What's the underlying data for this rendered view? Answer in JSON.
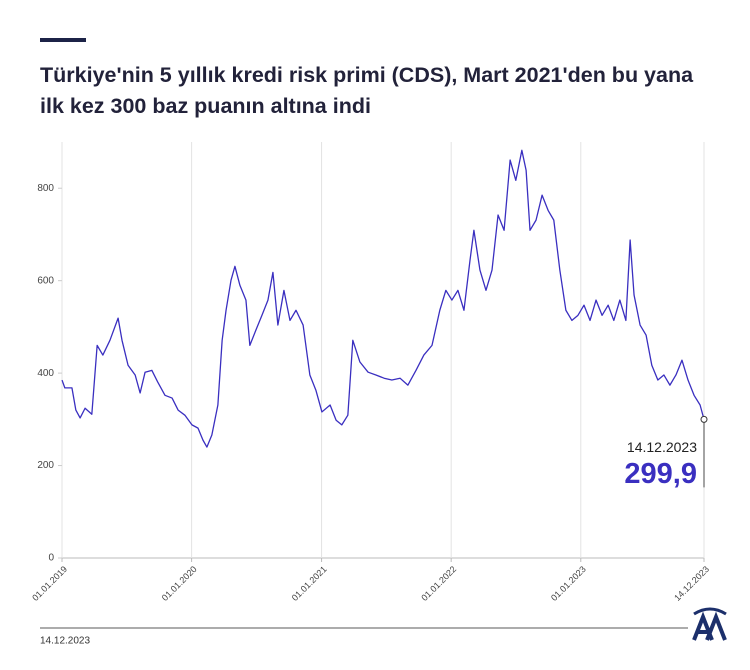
{
  "chart_data": {
    "type": "line",
    "title": "Türkiye'nin 5 yıllık kredi risk primi (CDS), Mart 2021'den bu yana ilk kez 300 baz puanın altına indi",
    "x": [
      "01.01.2019",
      "09.01.2019",
      "29.01.2019",
      "09.02.2019",
      "21.02.2019",
      "07.03.2019",
      "26.03.2019",
      "10.04.2019",
      "26.04.2019",
      "16.05.2019",
      "08.06.2019",
      "19.06.2019",
      "06.07.2019",
      "26.07.2019",
      "09.08.2019",
      "23.08.2019",
      "11.09.2019",
      "28.09.2019",
      "18.10.2019",
      "07.11.2019",
      "24.11.2019",
      "13.12.2019",
      "02.01.2020",
      "19.01.2020",
      "02.02.2020",
      "13.02.2020",
      "27.02.2020",
      "15.03.2020",
      "27.03.2020",
      "07.04.2020",
      "21.04.2020",
      "02.05.2020",
      "16.05.2020",
      "02.06.2020",
      "13.06.2020",
      "30.06.2020",
      "17.07.2020",
      "03.08.2020",
      "17.08.2020",
      "31.08.2020",
      "17.09.2020",
      "04.10.2020",
      "21.10.2020",
      "10.11.2020",
      "29.11.2020",
      "16.12.2020",
      "02.01.2021",
      "25.01.2021",
      "11.02.2021",
      "27.02.2021",
      "16.03.2021",
      "30.03.2021",
      "19.04.2021",
      "12.05.2021",
      "03.06.2021",
      "26.06.2021",
      "18.07.2021",
      "10.08.2021",
      "01.09.2021",
      "24.09.2021",
      "16.10.2021",
      "08.11.2021",
      "30.11.2021",
      "17.12.2021",
      "03.01.2022",
      "20.01.2022",
      "06.02.2022",
      "23.02.2022",
      "06.03.2022",
      "23.03.2022",
      "09.04.2022",
      "26.04.2022",
      "13.05.2022",
      "30.05.2022",
      "16.06.2022",
      "02.07.2022",
      "19.07.2022",
      "31.07.2022",
      "11.08.2022",
      "28.08.2022",
      "14.09.2022",
      "01.10.2022",
      "17.10.2022",
      "03.11.2022",
      "20.11.2022",
      "07.12.2022",
      "24.12.2022",
      "10.01.2023",
      "27.01.2023",
      "13.02.2023",
      "02.03.2023",
      "19.03.2023",
      "04.04.2023",
      "21.04.2023",
      "08.05.2023",
      "20.05.2023",
      "31.05.2023",
      "17.06.2023",
      "04.07.2023",
      "20.07.2023",
      "06.08.2023",
      "23.08.2023",
      "09.09.2023",
      "26.09.2023",
      "13.10.2023",
      "30.10.2023",
      "16.11.2023",
      "03.12.2023",
      "14.12.2023"
    ],
    "values": [
      385,
      368,
      368,
      320,
      303,
      324,
      311,
      460,
      439,
      471,
      519,
      471,
      417,
      396,
      357,
      402,
      406,
      380,
      352,
      346,
      320,
      309,
      288,
      281,
      255,
      240,
      266,
      331,
      471,
      536,
      601,
      631,
      590,
      558,
      460,
      493,
      525,
      558,
      618,
      504,
      579,
      514,
      536,
      504,
      396,
      363,
      316,
      331,
      298,
      288,
      309,
      471,
      424,
      402,
      396,
      389,
      385,
      389,
      374,
      406,
      439,
      460,
      536,
      579,
      558,
      579,
      536,
      644,
      709,
      623,
      579,
      623,
      742,
      709,
      861,
      817,
      882,
      839,
      709,
      731,
      785,
      752,
      731,
      623,
      536,
      514,
      525,
      547,
      514,
      558,
      525,
      547,
      514,
      558,
      514,
      688,
      569,
      504,
      482,
      417,
      385,
      396,
      374,
      396,
      428,
      385,
      352,
      331,
      299.9
    ],
    "value_labels": [
      null,
      null,
      null,
      null,
      null,
      null,
      null,
      null,
      null,
      null,
      null,
      null,
      null,
      null,
      null,
      null,
      null,
      null,
      null,
      null,
      null,
      null,
      null,
      null,
      null,
      null,
      null,
      null,
      null,
      null,
      null,
      null,
      null,
      null,
      null,
      null,
      null,
      null,
      null,
      null,
      null,
      null,
      null,
      null,
      null,
      null,
      null,
      null,
      null,
      null,
      null,
      null,
      null,
      null,
      null,
      null,
      null,
      null,
      null,
      null,
      null,
      null,
      null,
      null,
      null,
      null,
      null,
      null,
      null,
      null,
      null,
      null,
      null,
      null,
      null,
      null,
      null,
      null,
      null,
      null,
      null,
      null,
      null,
      null,
      null,
      null,
      null,
      null,
      null,
      null,
      null,
      null,
      null,
      null,
      null,
      null,
      null,
      null,
      null,
      null,
      null,
      null,
      null,
      null,
      null,
      null,
      null,
      null,
      "299,9"
    ],
    "color": "#3a2fc0",
    "xlim": [
      "01.01.2019",
      "14.12.2023"
    ],
    "xticks": [
      "01.01.2019",
      "01.01.2020",
      "01.01.2021",
      "01.01.2022",
      "01.01.2023",
      "14.12.2023"
    ],
    "ylim": [
      0,
      900
    ],
    "yticks": [
      0,
      200,
      400,
      600,
      800
    ],
    "grid": "x"
  },
  "footer": {
    "date": "14.12.2023",
    "logo": "AA"
  }
}
